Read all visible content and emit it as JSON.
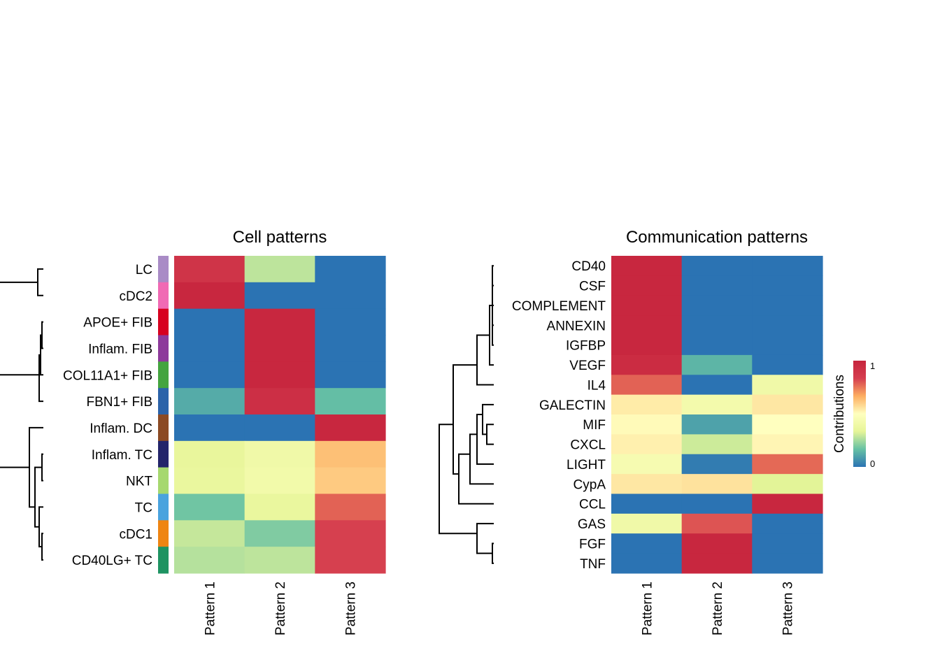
{
  "chart_data": [
    {
      "type": "heatmap",
      "title": "Cell patterns",
      "columns": [
        "Pattern 1",
        "Pattern 2",
        "Pattern 3"
      ],
      "rows": [
        "LC",
        "cDC2",
        "APOE+ FIB",
        "Inflam. FIB",
        "COL11A1+ FIB",
        "FBN1+ FIB",
        "Inflam. DC",
        "Inflam. TC",
        "NKT",
        "TC",
        "cDC1",
        "CD40LG+ TC"
      ],
      "row_colors": [
        "#a98bc6",
        "#f06ab4",
        "#d7001f",
        "#8d3a9b",
        "#44a43f",
        "#2b63a9",
        "#8b4a24",
        "#23246a",
        "#a6d86f",
        "#4aa3de",
        "#ef8512",
        "#1e9362"
      ],
      "values": [
        [
          0.9,
          0.28,
          0.0
        ],
        [
          0.98,
          0.0,
          0.0
        ],
        [
          0.0,
          0.98,
          0.0
        ],
        [
          0.0,
          0.98,
          0.0
        ],
        [
          0.0,
          0.98,
          0.0
        ],
        [
          0.12,
          0.93,
          0.16
        ],
        [
          0.0,
          0.0,
          0.98
        ],
        [
          0.35,
          0.4,
          0.63
        ],
        [
          0.36,
          0.41,
          0.61
        ],
        [
          0.18,
          0.36,
          0.78
        ],
        [
          0.29,
          0.2,
          0.83
        ],
        [
          0.27,
          0.28,
          0.83
        ]
      ],
      "color_range": [
        0,
        1
      ],
      "dendrogram": true
    },
    {
      "type": "heatmap",
      "title": "Communication patterns",
      "columns": [
        "Pattern 1",
        "Pattern 2",
        "Pattern 3"
      ],
      "rows": [
        "CD40",
        "CSF",
        "COMPLEMENT",
        "ANNEXIN",
        "IGFBP",
        "VEGF",
        "IL4",
        "GALECTIN",
        "MIF",
        "CXCL",
        "LIGHT",
        "CypA",
        "CCL",
        "GAS",
        "FGF",
        "TNF"
      ],
      "values": [
        [
          0.98,
          0.0,
          0.0
        ],
        [
          0.98,
          0.0,
          0.0
        ],
        [
          0.98,
          0.0,
          0.0
        ],
        [
          0.98,
          0.0,
          0.0
        ],
        [
          0.98,
          0.0,
          0.0
        ],
        [
          0.95,
          0.14,
          0.0
        ],
        [
          0.78,
          0.0,
          0.4
        ],
        [
          0.54,
          0.42,
          0.55
        ],
        [
          0.51,
          0.1,
          0.5
        ],
        [
          0.53,
          0.3,
          0.52
        ],
        [
          0.44,
          0.02,
          0.77
        ],
        [
          0.55,
          0.56,
          0.33
        ],
        [
          0.0,
          0.0,
          0.98
        ],
        [
          0.4,
          0.8,
          0.0
        ],
        [
          0.0,
          0.98,
          0.0
        ],
        [
          0.0,
          0.98,
          0.0
        ]
      ],
      "color_range": [
        0,
        1
      ],
      "dendrogram": true
    }
  ],
  "legend": {
    "title": "Contributions",
    "max_label": "1",
    "min_label": "0",
    "palette": [
      "#2b73b3",
      "#66c1a4",
      "#e6f598",
      "#ffffbf",
      "#fdae61",
      "#d53e4f",
      "#c6243d"
    ]
  }
}
